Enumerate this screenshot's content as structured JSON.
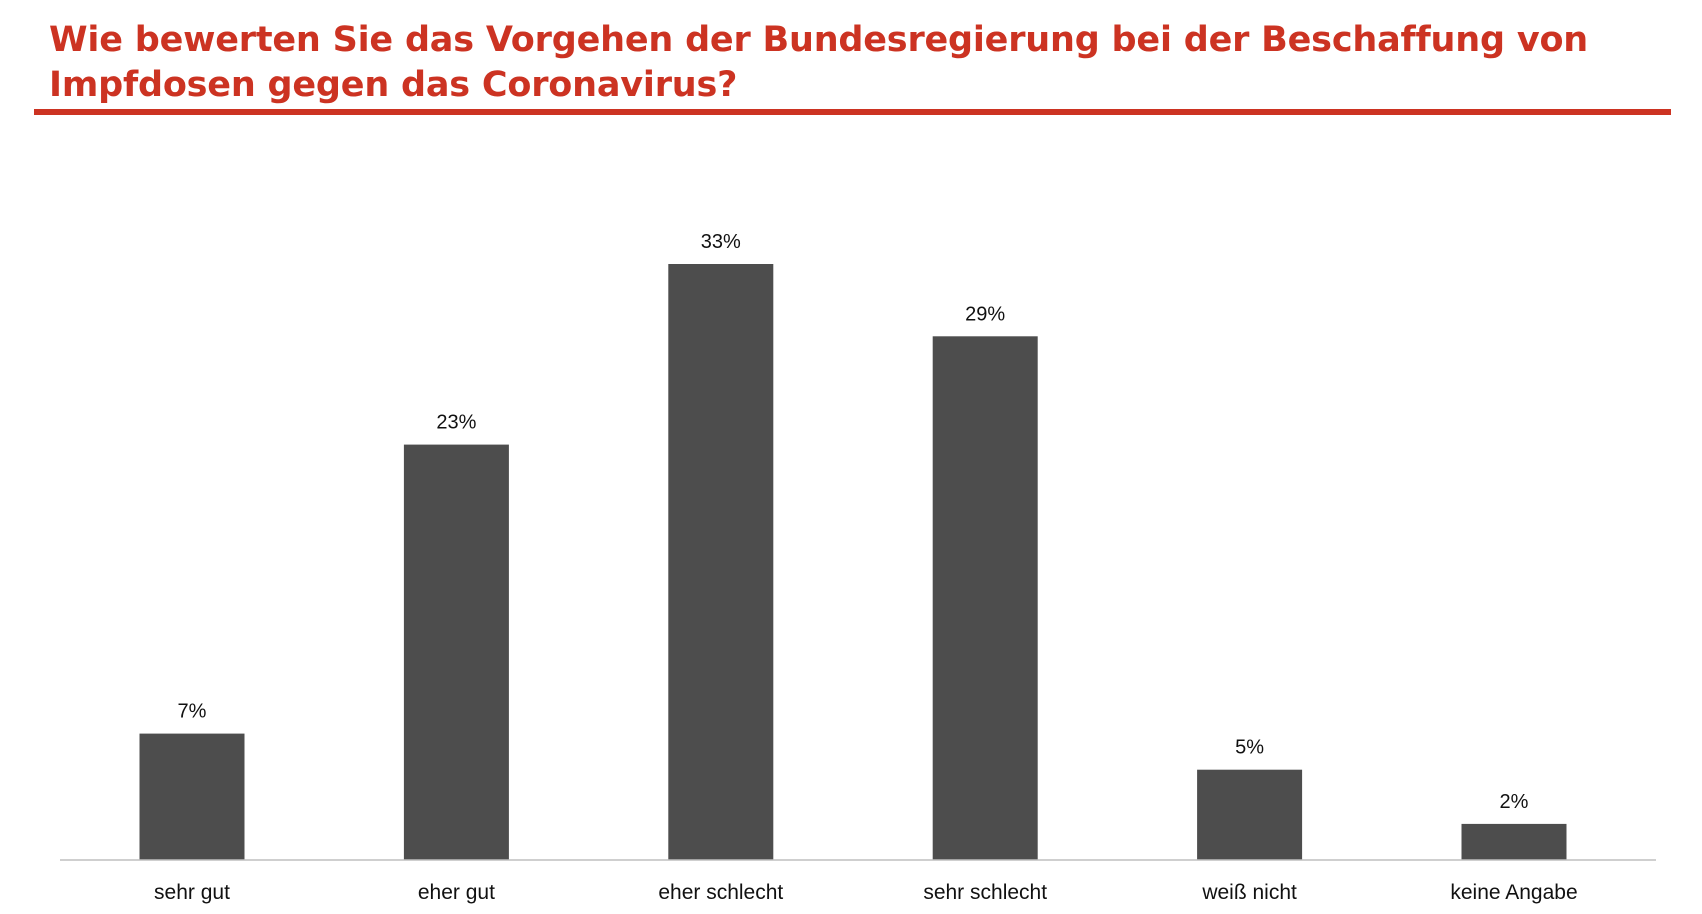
{
  "chart_data": {
    "type": "bar",
    "title": "Wie bewerten Sie das Vorgehen der Bundesregierung bei der Beschaffung von Impfdosen gegen das Coronavirus?",
    "categories": [
      "sehr gut",
      "eher gut",
      "eher schlecht",
      "sehr schlecht",
      "weiß nicht",
      "keine Angabe"
    ],
    "values": [
      7,
      23,
      33,
      29,
      5,
      2
    ],
    "value_labels": [
      "7%",
      "23%",
      "33%",
      "29%",
      "5%",
      "2%"
    ],
    "unit": "%",
    "ylim": [
      0,
      35
    ],
    "grid": false,
    "legend": "none",
    "colors": {
      "bar": "#4d4d4d",
      "title": "#cc3322",
      "rule": "#cc3322",
      "axis": "#bfbfbf"
    }
  }
}
